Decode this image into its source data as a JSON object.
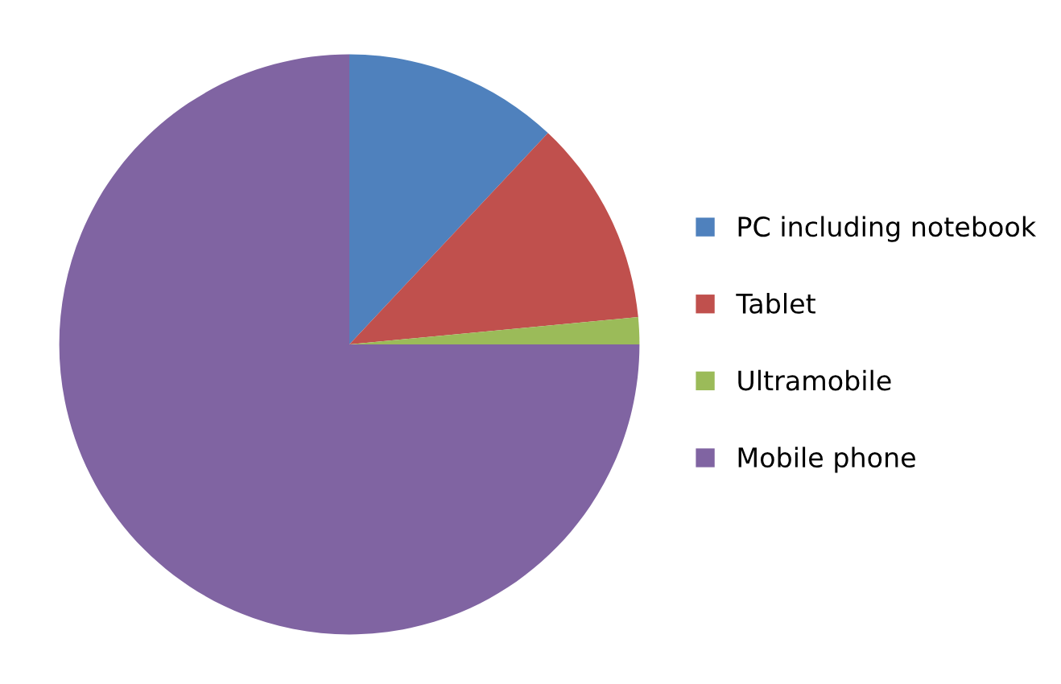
{
  "chart_data": {
    "type": "pie",
    "categories": [
      "PC including notebook",
      "Tablet",
      "Ultramobile",
      "Mobile phone"
    ],
    "values": [
      12,
      11.5,
      1.5,
      75
    ],
    "colors": [
      "#4f81bd",
      "#c0504d",
      "#9bbb59",
      "#8064a2"
    ],
    "legend": "right"
  }
}
